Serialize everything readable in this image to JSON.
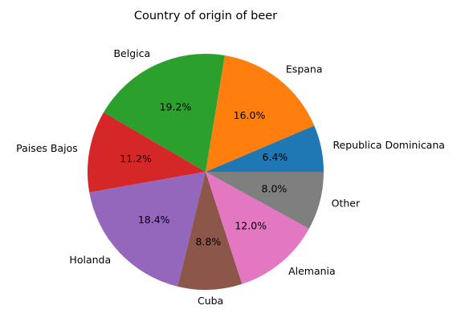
{
  "chart_data": {
    "type": "pie",
    "title": "Country of origin of beer",
    "labels": [
      "Republica Dominicana",
      "Espana",
      "Belgica",
      "Paises Bajos",
      "Holanda",
      "Cuba",
      "Alemania",
      "Other"
    ],
    "values": [
      6.4,
      16.0,
      19.2,
      11.2,
      18.4,
      8.8,
      12.0,
      8.0
    ],
    "percent_labels": [
      "6.4%",
      "16.0%",
      "19.2%",
      "11.2%",
      "18.4%",
      "8.8%",
      "12.0%",
      "8.0%"
    ],
    "colors": [
      "#1f77b4",
      "#ff7f0e",
      "#2ca02c",
      "#d62728",
      "#9467bd",
      "#8c564b",
      "#e377c2",
      "#7f7f7f"
    ],
    "start_angle_deg": 0,
    "direction": "counterclockwise",
    "legend": "none"
  }
}
